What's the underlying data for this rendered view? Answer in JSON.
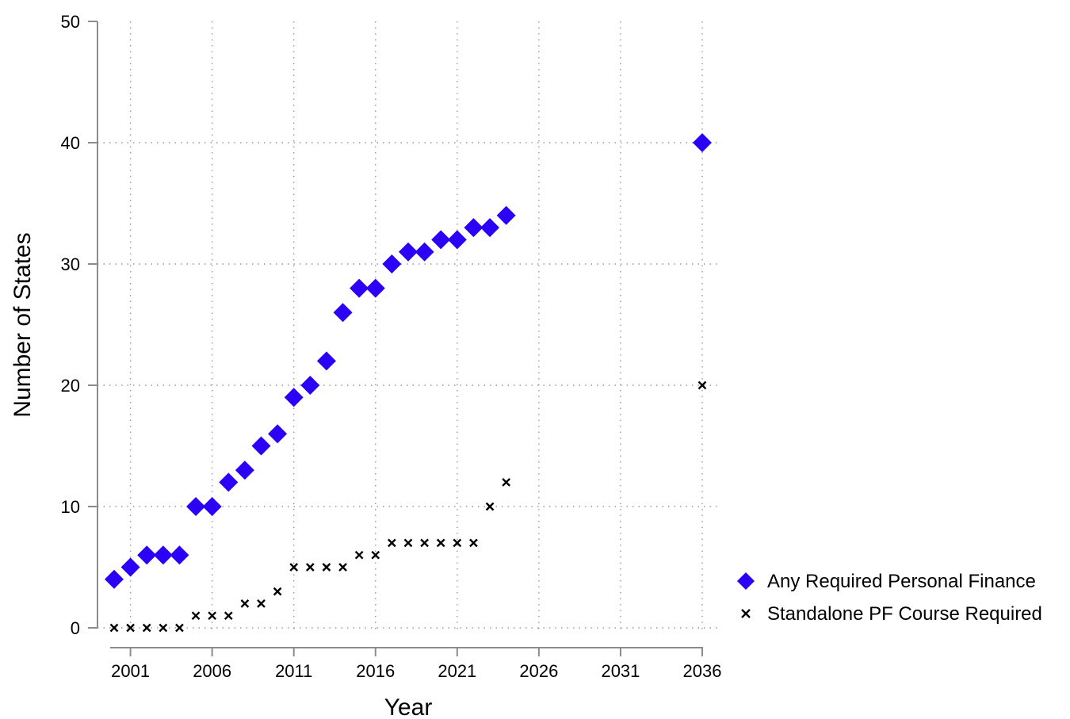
{
  "chart_data": {
    "type": "scatter",
    "title": "",
    "xlabel": "Year",
    "ylabel": "Number of States",
    "xlim": [
      1999,
      2037
    ],
    "ylim": [
      0,
      50
    ],
    "xticks": [
      2001,
      2006,
      2011,
      2016,
      2021,
      2026,
      2031,
      2036
    ],
    "yticks": [
      0,
      10,
      20,
      30,
      40,
      50
    ],
    "grid": true,
    "legend_position": "right",
    "series": [
      {
        "name": "Any Required Personal Finance",
        "marker": "diamond",
        "color": "#2b00f5",
        "points": [
          [
            2000,
            4
          ],
          [
            2001,
            5
          ],
          [
            2002,
            6
          ],
          [
            2003,
            6
          ],
          [
            2004,
            6
          ],
          [
            2005,
            10
          ],
          [
            2006,
            10
          ],
          [
            2007,
            12
          ],
          [
            2008,
            13
          ],
          [
            2009,
            15
          ],
          [
            2010,
            16
          ],
          [
            2011,
            19
          ],
          [
            2012,
            20
          ],
          [
            2013,
            22
          ],
          [
            2014,
            26
          ],
          [
            2015,
            28
          ],
          [
            2016,
            28
          ],
          [
            2017,
            30
          ],
          [
            2018,
            31
          ],
          [
            2019,
            31
          ],
          [
            2020,
            32
          ],
          [
            2021,
            32
          ],
          [
            2022,
            33
          ],
          [
            2023,
            33
          ],
          [
            2024,
            34
          ],
          [
            2036,
            40
          ]
        ]
      },
      {
        "name": "Standalone PF Course Required",
        "marker": "x",
        "color": "#000000",
        "points": [
          [
            2000,
            0
          ],
          [
            2001,
            0
          ],
          [
            2002,
            0
          ],
          [
            2003,
            0
          ],
          [
            2004,
            0
          ],
          [
            2005,
            1
          ],
          [
            2006,
            1
          ],
          [
            2007,
            1
          ],
          [
            2008,
            2
          ],
          [
            2009,
            2
          ],
          [
            2010,
            3
          ],
          [
            2011,
            5
          ],
          [
            2012,
            5
          ],
          [
            2013,
            5
          ],
          [
            2014,
            5
          ],
          [
            2015,
            6
          ],
          [
            2016,
            6
          ],
          [
            2017,
            7
          ],
          [
            2018,
            7
          ],
          [
            2019,
            7
          ],
          [
            2020,
            7
          ],
          [
            2021,
            7
          ],
          [
            2022,
            7
          ],
          [
            2023,
            10
          ],
          [
            2024,
            12
          ],
          [
            2036,
            20
          ]
        ]
      }
    ]
  }
}
